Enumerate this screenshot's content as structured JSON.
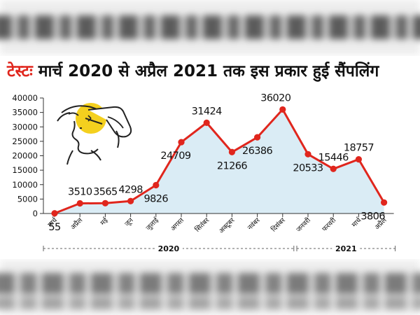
{
  "title": {
    "highlight": "टेस्टः",
    "text": "मार्च 2020 से अप्रैल 2021 तक इस प्रकार हुई सैंपलिंग"
  },
  "colors": {
    "line": "#e0261d",
    "area": "#d6eaf4",
    "title_accent": "#e0261d",
    "text": "#111111"
  },
  "icon": "person-nasal-swab-illustration",
  "chart_data": {
    "type": "line",
    "categories": [
      "मार्च",
      "अप्रैल",
      "मई",
      "जून",
      "जुलाई",
      "अगस्त",
      "सितंबर",
      "अक्टूबर",
      "नवंबर",
      "दिसंबर",
      "जनवरी",
      "फरवरी",
      "मार्च",
      "अप्रैल"
    ],
    "values": [
      55,
      3510,
      3565,
      4298,
      9826,
      24709,
      31424,
      21266,
      26386,
      36020,
      20533,
      15446,
      18757,
      3806
    ],
    "data_labels": [
      "55",
      "3510",
      "3565",
      "4298",
      "9826",
      "24709",
      "31424",
      "21266",
      "26386",
      "36020",
      "20533",
      "15446",
      "18757",
      "3806"
    ],
    "y_ticks": [
      "0",
      "5000",
      "10000",
      "15000",
      "20000",
      "25000",
      "30000",
      "35000",
      "40000"
    ],
    "ylim": [
      0,
      40000
    ],
    "year_groups": [
      {
        "label": "2020",
        "from": 0,
        "to": 9
      },
      {
        "label": "2021",
        "from": 10,
        "to": 13
      }
    ],
    "area_fill": true,
    "grid": false
  }
}
